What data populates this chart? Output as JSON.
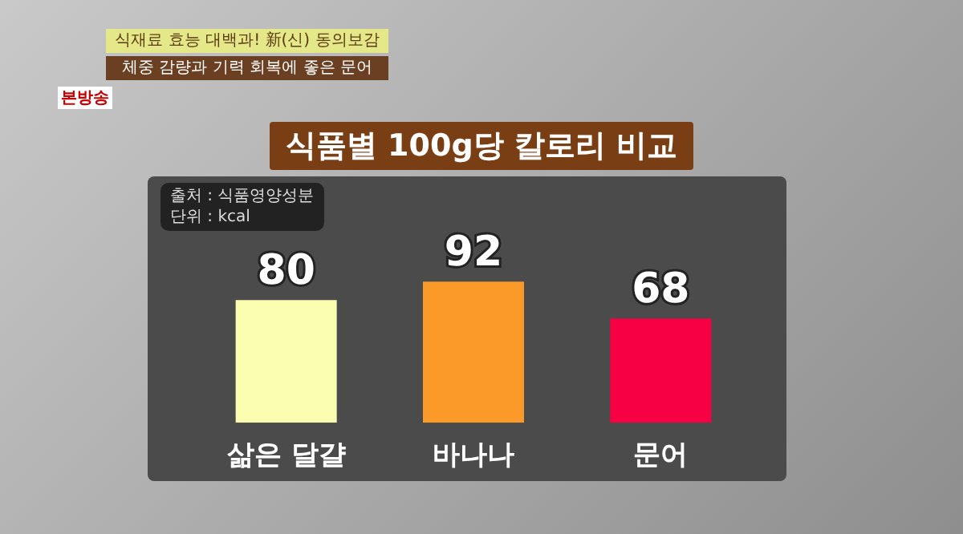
{
  "chart_data": {
    "type": "bar",
    "title": "식품별 100g당 칼로리 비교",
    "categories": [
      "삶은 달걀",
      "바나나",
      "문어"
    ],
    "values": [
      80,
      92,
      68
    ],
    "colors": [
      "#fbfdb0",
      "#fb9a28",
      "#f80044"
    ],
    "tick_labels": "x",
    "grid": false,
    "legend": false,
    "data_labels": true,
    "annotations": [
      "출처 : 식품영양성분",
      "단위 : kcal",
      "식재료 효능 대백과! 新(신) 동의보감",
      "체중 감량과 기력 회복에 좋은 문어",
      "본방송"
    ]
  }
}
